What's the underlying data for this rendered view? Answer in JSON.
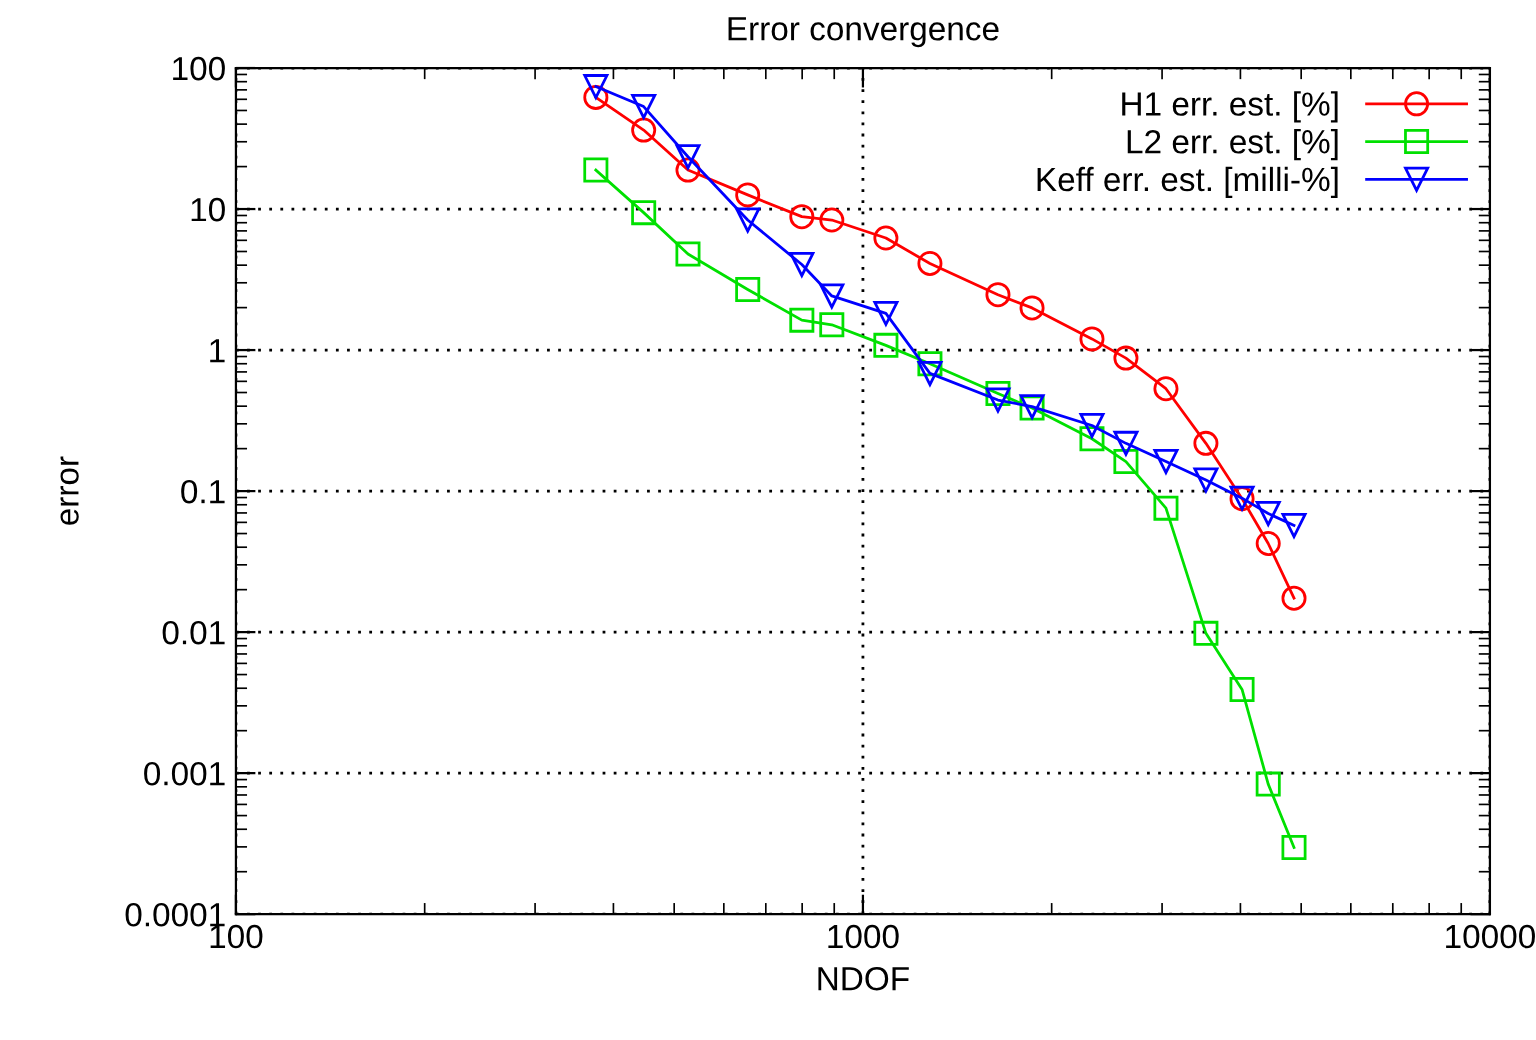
{
  "chart_data": {
    "type": "line",
    "title": "Error convergence",
    "xlabel": "NDOF",
    "ylabel": "error",
    "log": "xy",
    "grid": true,
    "legend": "top right",
    "line_style": "solid",
    "xlim": [
      100,
      10000
    ],
    "xticks": [
      100,
      1000,
      10000
    ],
    "ylim": [
      0.0001,
      100
    ],
    "yticks": [
      0.0001,
      0.001,
      0.01,
      0.1,
      1,
      10,
      100
    ],
    "x": [
      375,
      447,
      526,
      655,
      799,
      892,
      1088,
      1279,
      1642,
      1861,
      2319,
      2627,
      3043,
      3524,
      4024,
      4430,
      4870
    ],
    "series": [
      {
        "name": "H1 err. est. [%]",
        "color": "#ff0000",
        "marker": "circle",
        "values": [
          61.9,
          36.3,
          18.9,
          12.6,
          8.83,
          8.36,
          6.23,
          4.11,
          2.47,
          1.99,
          1.2,
          0.877,
          0.532,
          0.218,
          0.0884,
          0.0425,
          0.0174
        ]
      },
      {
        "name": "L2 err. est. [%]",
        "color": "#00e000",
        "marker": "square",
        "values": [
          18.9,
          9.43,
          4.8,
          2.69,
          1.63,
          1.51,
          1.08,
          0.8,
          0.492,
          0.388,
          0.235,
          0.162,
          0.0757,
          0.0098,
          0.00392,
          0.000836,
          0.000297
        ]
      },
      {
        "name": "Keff err. est. [milli-%]",
        "color": "#0000ff",
        "marker": "triangle",
        "values": [
          73.8,
          53.3,
          23.5,
          8.36,
          4.04,
          2.42,
          1.82,
          0.683,
          0.442,
          0.397,
          0.292,
          0.218,
          0.162,
          0.12,
          0.0891,
          0.0693,
          0.057
        ]
      }
    ]
  }
}
